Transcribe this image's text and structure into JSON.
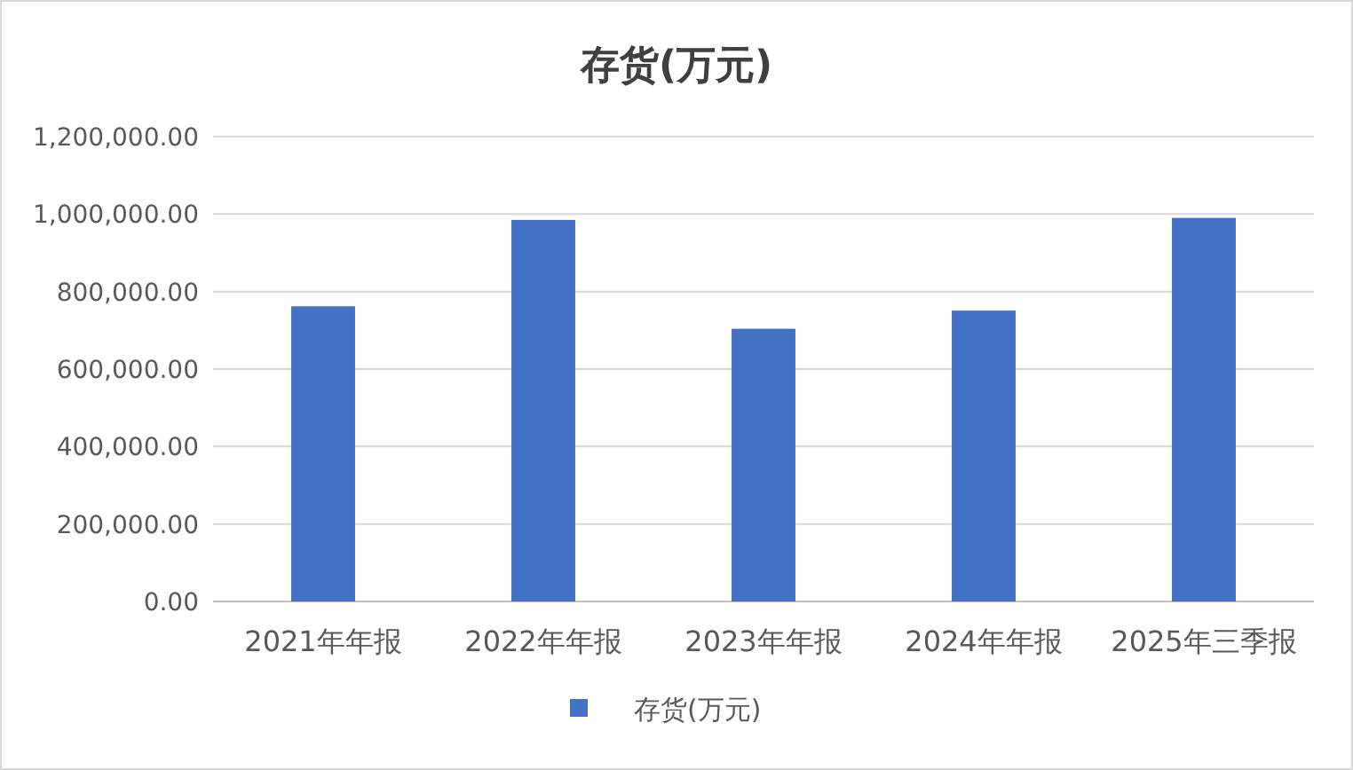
{
  "chart_data": {
    "type": "bar",
    "title": "存货(万元)",
    "categories": [
      "2021年年报",
      "2022年年报",
      "2023年年报",
      "2024年年报",
      "2025年三季报"
    ],
    "series": [
      {
        "name": "存货(万元)",
        "color": "#4472c4",
        "values": [
          762000,
          985000,
          704000,
          751000,
          990000
        ]
      }
    ],
    "ylim": [
      0,
      1200000
    ],
    "yticks": [
      {
        "value": 0,
        "label": "0.00"
      },
      {
        "value": 200000,
        "label": "200,000.00"
      },
      {
        "value": 400000,
        "label": "400,000.00"
      },
      {
        "value": 600000,
        "label": "600,000.00"
      },
      {
        "value": 800000,
        "label": "800,000.00"
      },
      {
        "value": 1000000,
        "label": "1,000,000.00"
      },
      {
        "value": 1200000,
        "label": "1,200,000.00"
      }
    ],
    "grid": "y",
    "legend": "bottom"
  }
}
